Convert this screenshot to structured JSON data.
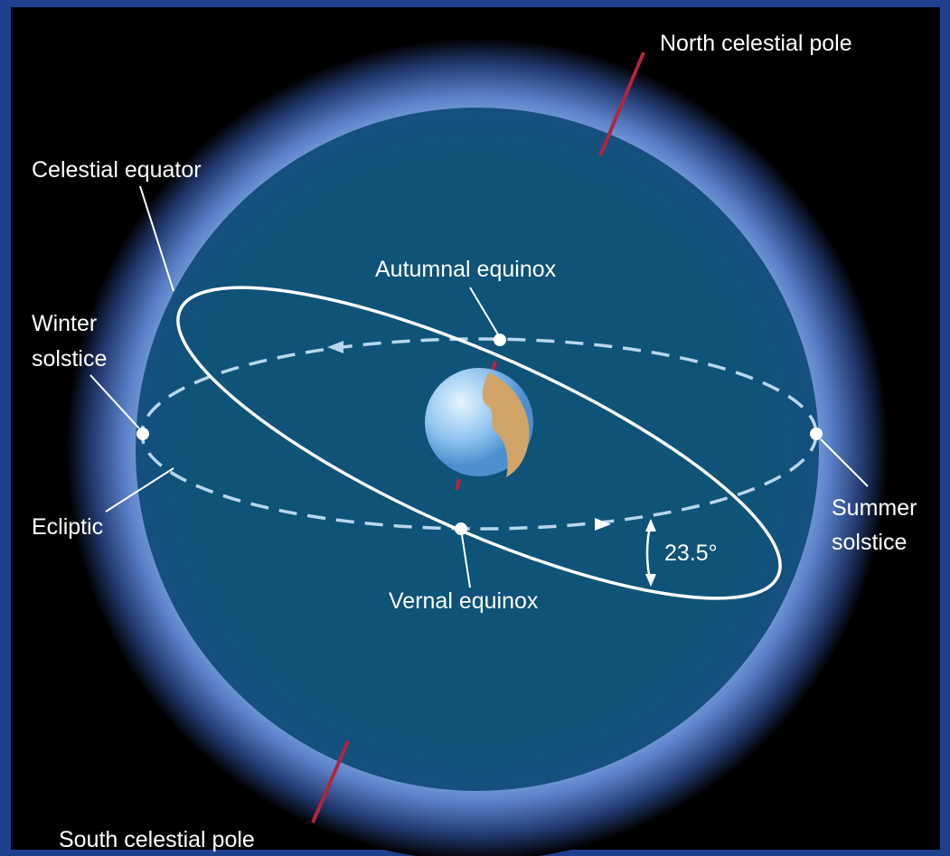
{
  "labels": {
    "north_pole": "North celestial pole",
    "celestial_equator": "Celestial equator",
    "autumnal_equinox": "Autumnal equinox",
    "winter_solstice": [
      "Winter",
      "solstice"
    ],
    "ecliptic": "Ecliptic",
    "summer_solstice": [
      "Summer",
      "solstice"
    ],
    "tilt": "23.5°",
    "vernal_equinox": "Vernal equinox",
    "south_pole": "South celestial pole"
  }
}
